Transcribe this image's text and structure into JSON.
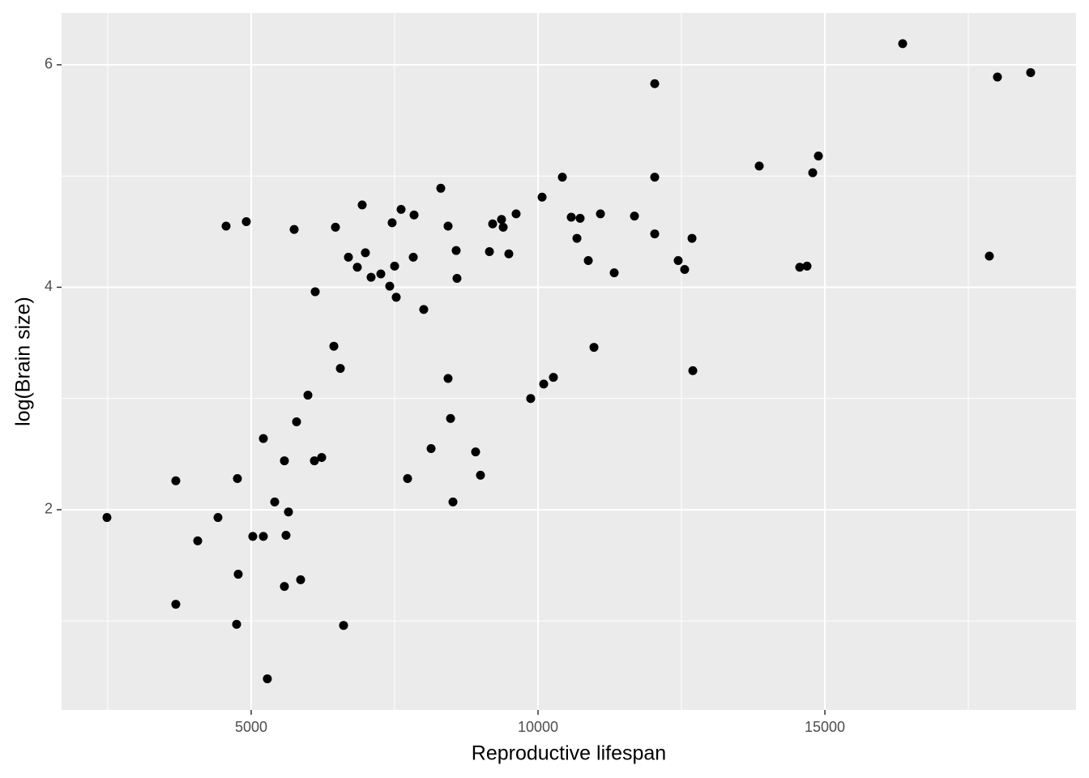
{
  "chart_data": {
    "type": "scatter",
    "x_label": "Reproductive lifespan",
    "y_label": "log(Brain size)",
    "color": "#000000",
    "background": "#ebebeb",
    "grid": true,
    "xlim": [
      1695,
      19378
    ],
    "ylim": [
      0.2,
      6.466
    ],
    "xticks": [
      5000,
      10000,
      15000
    ],
    "yticks": [
      2,
      4,
      6
    ],
    "x_minor_ticks": [
      2500,
      7500,
      12500,
      17500
    ],
    "y_minor_ticks": [
      1,
      3,
      5
    ],
    "x": [
      2486,
      3686,
      3686,
      4068,
      4421,
      4562,
      4760,
      4774,
      4746,
      4915,
      5028,
      5212,
      5212,
      5282,
      5410,
      5579,
      5607,
      5579,
      5650,
      5749,
      5791,
      5862,
      5989,
      6102,
      6116,
      6229,
      6441,
      6469,
      6554,
      6610,
      6695,
      6850,
      6935,
      6991,
      7090,
      7260,
      7415,
      7457,
      7500,
      7528,
      7613,
      7726,
      7839,
      7825,
      8008,
      8136,
      8305,
      8432,
      8432,
      8475,
      8517,
      8573,
      8587,
      8912,
      8997,
      9153,
      9209,
      9364,
      9393,
      9491,
      9618,
      9872,
      10071,
      10099,
      10268,
      10424,
      10579,
      10678,
      10734,
      10876,
      10975,
      11088,
      11328,
      11681,
      12034,
      12034,
      12034,
      12443,
      12556,
      12684,
      12698,
      13856,
      14562,
      14689,
      14788,
      14887,
      16356,
      17867,
      18008,
      18587
    ],
    "y": [
      1.93,
      2.26,
      1.15,
      1.72,
      1.93,
      4.55,
      2.28,
      1.42,
      0.97,
      4.59,
      1.76,
      2.64,
      1.76,
      0.48,
      2.07,
      2.44,
      1.77,
      1.31,
      1.98,
      4.52,
      2.79,
      1.37,
      3.03,
      2.44,
      3.96,
      2.47,
      3.47,
      4.54,
      3.27,
      0.96,
      4.27,
      4.18,
      4.74,
      4.31,
      4.09,
      4.12,
      4.01,
      4.58,
      4.19,
      3.91,
      4.7,
      2.28,
      4.65,
      4.27,
      3.8,
      2.55,
      4.89,
      4.55,
      3.18,
      2.82,
      2.07,
      4.33,
      4.08,
      2.52,
      2.31,
      4.32,
      4.57,
      4.61,
      4.54,
      4.3,
      4.66,
      3.0,
      4.81,
      3.13,
      3.19,
      4.99,
      4.63,
      4.44,
      4.62,
      4.24,
      3.46,
      4.66,
      4.13,
      4.64,
      5.83,
      4.99,
      4.48,
      4.24,
      4.16,
      4.44,
      3.25,
      5.09,
      4.18,
      4.19,
      5.03,
      5.18,
      6.19,
      4.28,
      5.89,
      5.93
    ]
  }
}
